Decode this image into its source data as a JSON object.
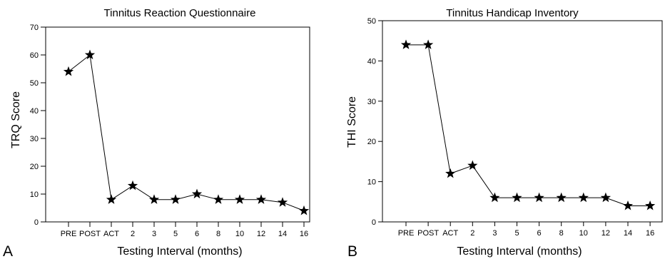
{
  "charts": [
    {
      "panel": "A",
      "chart_data": {
        "type": "line",
        "title": "Tinnitus Reaction Questionnaire",
        "xlabel": "Testing Interval (months)",
        "ylabel": "TRQ Score",
        "categories": [
          "PRE",
          "POST",
          "ACT",
          "2",
          "3",
          "5",
          "6",
          "8",
          "10",
          "12",
          "14",
          "16"
        ],
        "values": [
          54,
          60,
          8,
          13,
          8,
          8,
          10,
          8,
          8,
          8,
          7,
          4
        ],
        "ylim": [
          0,
          70
        ],
        "yticks": [
          0,
          10,
          20,
          30,
          40,
          50,
          60,
          70
        ],
        "marker": "star",
        "grid": false,
        "color": "#000000"
      }
    },
    {
      "panel": "B",
      "chart_data": {
        "type": "line",
        "title": "Tinnitus Handicap Inventory",
        "xlabel": "Testing Interval (months)",
        "ylabel": "THI Score",
        "categories": [
          "PRE",
          "POST",
          "ACT",
          "2",
          "3",
          "5",
          "6",
          "8",
          "10",
          "12",
          "14",
          "16"
        ],
        "values": [
          44,
          44,
          12,
          14,
          6,
          6,
          6,
          6,
          6,
          6,
          4,
          4
        ],
        "ylim": [
          0,
          50
        ],
        "yticks": [
          0,
          10,
          20,
          30,
          40,
          50
        ],
        "marker": "star",
        "grid": false,
        "color": "#000000"
      }
    }
  ]
}
